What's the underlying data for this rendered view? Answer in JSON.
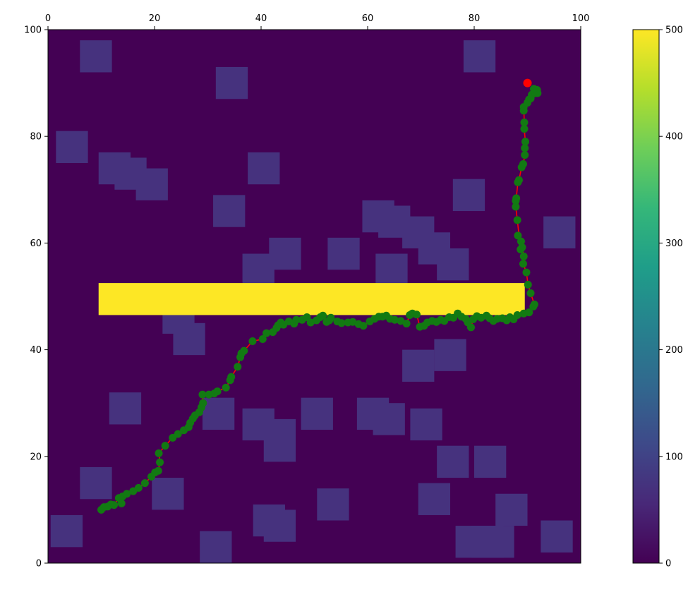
{
  "chart_data": [
    {
      "type": "heatmap",
      "xlim": [
        0,
        100
      ],
      "ylim": [
        0,
        100
      ],
      "x_ticks": [
        0,
        20,
        40,
        60,
        80,
        100
      ],
      "y_ticks": [
        0,
        20,
        40,
        60,
        80,
        100
      ],
      "x_tick_labels": [
        "0",
        "20",
        "40",
        "60",
        "80",
        "100"
      ],
      "y_tick_labels": [
        "0",
        "20",
        "40",
        "60",
        "80",
        "100"
      ],
      "x_tick_position": "top",
      "colormap": "viridis",
      "background_value": 0,
      "obstacle_value": 100,
      "wall_value": 500,
      "colors": {
        "background": "#440154",
        "obstacle": "#46327e",
        "wall": "#fde725",
        "path_line": "#ff0000",
        "waypoint": "#127a12",
        "goal": "#ff0000"
      },
      "obstacles": [
        [
          6,
          12,
          92,
          98
        ],
        [
          31.5,
          37.5,
          87,
          93
        ],
        [
          78,
          84,
          92,
          98
        ],
        [
          1.5,
          7.5,
          75,
          81
        ],
        [
          9.5,
          15.5,
          71,
          77
        ],
        [
          12.5,
          18.5,
          70,
          76
        ],
        [
          16.5,
          22.5,
          68,
          74
        ],
        [
          37.5,
          43.5,
          71,
          77
        ],
        [
          31,
          37,
          63,
          69
        ],
        [
          59,
          65,
          62,
          68
        ],
        [
          62,
          68,
          61,
          67
        ],
        [
          66.5,
          72.5,
          59,
          65
        ],
        [
          69.5,
          75.5,
          56,
          62
        ],
        [
          73,
          79,
          53,
          59
        ],
        [
          76,
          82,
          66,
          72
        ],
        [
          93,
          99,
          59,
          65
        ],
        [
          41.5,
          47.5,
          55,
          61
        ],
        [
          52.5,
          58.5,
          55,
          61
        ],
        [
          36.5,
          42.5,
          52,
          58
        ],
        [
          61.5,
          67.5,
          52,
          58
        ],
        [
          21.5,
          27.5,
          43,
          49
        ],
        [
          23.5,
          29.5,
          39,
          45
        ],
        [
          72.5,
          78.5,
          36,
          42
        ],
        [
          66.5,
          72.5,
          34,
          40
        ],
        [
          11.5,
          17.5,
          26,
          32
        ],
        [
          29,
          35,
          25,
          31
        ],
        [
          36.5,
          42.5,
          23,
          29
        ],
        [
          40.5,
          46.5,
          19,
          27
        ],
        [
          47.5,
          53.5,
          25,
          31
        ],
        [
          58,
          64,
          25,
          31
        ],
        [
          61,
          67,
          24,
          30
        ],
        [
          68,
          74,
          23,
          29
        ],
        [
          6,
          12,
          12,
          18
        ],
        [
          73,
          79,
          16,
          22
        ],
        [
          80,
          86,
          16,
          22
        ],
        [
          19.5,
          25.5,
          10,
          16
        ],
        [
          50.5,
          56.5,
          8,
          14
        ],
        [
          69.5,
          75.5,
          9,
          15
        ],
        [
          84,
          90,
          7,
          13
        ],
        [
          0.5,
          6.5,
          3,
          9
        ],
        [
          38.5,
          44.5,
          5,
          11
        ],
        [
          40.5,
          46.5,
          4,
          10
        ],
        [
          28.5,
          34.5,
          0,
          6
        ],
        [
          76.5,
          82.5,
          1,
          7
        ],
        [
          79.5,
          85.5,
          1,
          7
        ],
        [
          81.5,
          87.5,
          1,
          7
        ],
        [
          92.5,
          98.5,
          2,
          8
        ]
      ],
      "wall": [
        9.5,
        89.5,
        46.5,
        52.5
      ],
      "path": [
        [
          10,
          10
        ],
        [
          10.5,
          10.5
        ],
        [
          11.2,
          10.6
        ],
        [
          11.8,
          11
        ],
        [
          12.4,
          10.9
        ],
        [
          13.3,
          12.2
        ],
        [
          13.8,
          11.2
        ],
        [
          14,
          12.5
        ],
        [
          14.8,
          13
        ],
        [
          16,
          13.5
        ],
        [
          17,
          14.1
        ],
        [
          18.2,
          15
        ],
        [
          19.4,
          16.2
        ],
        [
          20.1,
          17
        ],
        [
          20.7,
          17.3
        ],
        [
          21,
          18.9
        ],
        [
          20.8,
          20.6
        ],
        [
          22,
          22
        ],
        [
          23.4,
          23.5
        ],
        [
          24.4,
          24.2
        ],
        [
          25.5,
          24.9
        ],
        [
          26.4,
          25.5
        ],
        [
          26.7,
          26.3
        ],
        [
          27.2,
          27.1
        ],
        [
          27.6,
          27.7
        ],
        [
          28.4,
          28.3
        ],
        [
          28.8,
          29.2
        ],
        [
          29.1,
          30
        ],
        [
          29,
          31.6
        ],
        [
          30.2,
          31.6
        ],
        [
          31.2,
          31.8
        ],
        [
          31.8,
          32.2
        ],
        [
          33.4,
          32.9
        ],
        [
          34.2,
          34.3
        ],
        [
          34.4,
          34.9
        ],
        [
          35.6,
          36.8
        ],
        [
          36.1,
          38.6
        ],
        [
          36.3,
          39.3
        ],
        [
          36.8,
          39.8
        ],
        [
          38.4,
          41.6
        ],
        [
          40.3,
          42
        ],
        [
          41,
          43.1
        ],
        [
          42.2,
          43.3
        ],
        [
          42.9,
          44.1
        ],
        [
          43.2,
          44.6
        ],
        [
          43.7,
          45.1
        ],
        [
          44.2,
          44.7
        ],
        [
          45.2,
          45.3
        ],
        [
          46.2,
          44.9
        ],
        [
          46.6,
          45.6
        ],
        [
          47.7,
          45.6
        ],
        [
          48.6,
          46.1
        ],
        [
          49.3,
          45.1
        ],
        [
          50.4,
          45.5
        ],
        [
          51.1,
          46.1
        ],
        [
          51.6,
          46.4
        ],
        [
          52.3,
          45.2
        ],
        [
          52.8,
          45.5
        ],
        [
          53.1,
          46
        ],
        [
          54.3,
          45.3
        ],
        [
          55.1,
          45
        ],
        [
          56.3,
          45.1
        ],
        [
          57.2,
          45.2
        ],
        [
          58.3,
          44.8
        ],
        [
          59.2,
          44.5
        ],
        [
          60.4,
          45.3
        ],
        [
          61.3,
          45.8
        ],
        [
          62.1,
          46.2
        ],
        [
          62.8,
          46.2
        ],
        [
          63.5,
          46.4
        ],
        [
          64.2,
          45.8
        ],
        [
          65.1,
          45.6
        ],
        [
          66.2,
          45.4
        ],
        [
          67.3,
          44.9
        ],
        [
          67.9,
          46.5
        ],
        [
          68.4,
          46.8
        ],
        [
          69.2,
          46.6
        ],
        [
          69.8,
          44.3
        ],
        [
          70.6,
          44.5
        ],
        [
          71.2,
          45.1
        ],
        [
          72.1,
          45.4
        ],
        [
          72.9,
          45.2
        ],
        [
          73.7,
          45.6
        ],
        [
          74.4,
          45.4
        ],
        [
          75.3,
          46.1
        ],
        [
          76.1,
          46
        ],
        [
          76.9,
          46.8
        ],
        [
          77.6,
          46.2
        ],
        [
          78.4,
          45.8
        ],
        [
          78.8,
          45.1
        ],
        [
          79.4,
          44.2
        ],
        [
          79.8,
          45.7
        ],
        [
          80.5,
          46.3
        ],
        [
          81.3,
          46
        ],
        [
          82.3,
          46.4
        ],
        [
          82.9,
          45.9
        ],
        [
          83.6,
          45.4
        ],
        [
          84.3,
          45.8
        ],
        [
          85.3,
          45.9
        ],
        [
          86.1,
          45.5
        ],
        [
          86.7,
          46.1
        ],
        [
          87.4,
          45.7
        ],
        [
          88.1,
          46.5
        ],
        [
          89.3,
          46.8
        ],
        [
          90.3,
          47
        ],
        [
          91.1,
          48.1
        ],
        [
          91.3,
          48.5
        ],
        [
          90.6,
          50.6
        ],
        [
          90.1,
          52.2
        ],
        [
          89.8,
          54.5
        ],
        [
          89.2,
          56.1
        ],
        [
          89.3,
          57.5
        ],
        [
          89,
          59.2
        ],
        [
          88.8,
          60.3
        ],
        [
          88.2,
          61.4
        ],
        [
          88.7,
          58.8
        ],
        [
          88.1,
          64.3
        ],
        [
          87.8,
          66.8
        ],
        [
          87.8,
          67.9
        ],
        [
          87.9,
          68.4
        ],
        [
          88.2,
          71.4
        ],
        [
          88.4,
          71.8
        ],
        [
          88.9,
          74.2
        ],
        [
          89.2,
          74.8
        ],
        [
          89.5,
          76.5
        ],
        [
          89.5,
          77.8
        ],
        [
          89.6,
          79
        ],
        [
          89.4,
          81.4
        ],
        [
          89.4,
          82.6
        ],
        [
          89.3,
          85.5
        ],
        [
          89.3,
          84.8
        ],
        [
          90,
          86.3
        ],
        [
          90.3,
          86.9
        ],
        [
          90.6,
          87.1
        ],
        [
          90.8,
          87.8
        ],
        [
          91.3,
          88.5
        ],
        [
          91.5,
          88.1
        ],
        [
          91.8,
          88.7
        ],
        [
          91.9,
          88.1
        ],
        [
          91.2,
          88.9
        ]
      ],
      "goal": [
        90,
        90
      ]
    },
    {
      "type": "colorbar",
      "range": [
        0,
        500
      ],
      "ticks": [
        0,
        100,
        200,
        300,
        400,
        500
      ],
      "tick_labels": [
        "0",
        "100",
        "200",
        "300",
        "400",
        "500"
      ],
      "colormap": "viridis",
      "colormap_stops": [
        "#440154",
        "#482878",
        "#3e4989",
        "#31688e",
        "#26828e",
        "#1f9e89",
        "#35b779",
        "#6ece58",
        "#b5de2b",
        "#fde725"
      ]
    }
  ]
}
